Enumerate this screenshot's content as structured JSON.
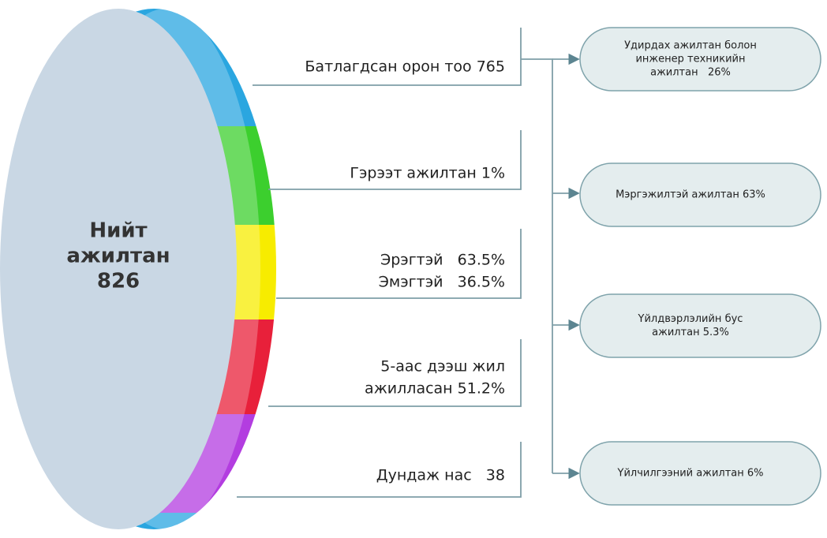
{
  "center": {
    "lines": [
      "Нийт",
      "ажилтан",
      "826"
    ]
  },
  "stats": [
    {
      "lines": [
        "Батлагдсан орон тоо 765"
      ]
    },
    {
      "lines": [
        "Гэрээт ажилтан 1%"
      ]
    },
    {
      "lines": [
        "Эрэгтэй   63.5%",
        "Эмэгтэй   36.5%"
      ]
    },
    {
      "lines": [
        "5-аас дээш жил",
        "ажилласан 51.2%"
      ]
    },
    {
      "lines": [
        "Дундаж нас   38"
      ]
    }
  ],
  "boxes": [
    {
      "lines": [
        "Удирдах ажилтан болон",
        "инженер техникийн",
        "ажилтан   26%"
      ]
    },
    {
      "lines": [
        "Мэргэжилтэй ажилтан 63%"
      ]
    },
    {
      "lines": [
        "Үйлдвэрлэлийн бус",
        "ажилтан 5.3%"
      ]
    },
    {
      "lines": [
        "Үйлчилгээний ажилтан 6%"
      ]
    }
  ]
}
